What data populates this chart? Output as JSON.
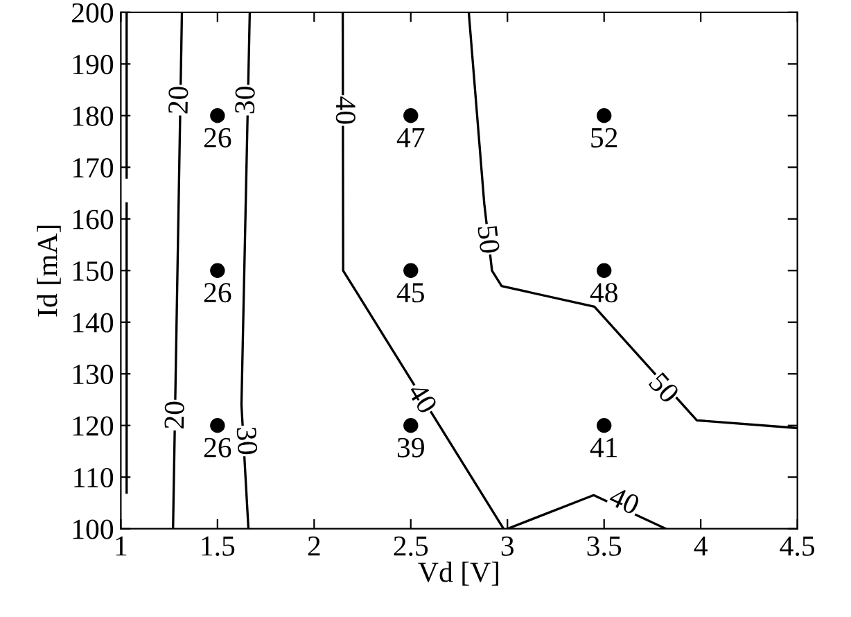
{
  "chart_data": {
    "type": "line",
    "xlabel": "Vd [V]",
    "ylabel": "Id [mA]",
    "xlim": [
      1,
      4.5
    ],
    "ylim": [
      100,
      200
    ],
    "xticks": [
      1,
      1.5,
      2,
      2.5,
      3,
      3.5,
      4,
      4.5
    ],
    "yticks": [
      100,
      110,
      120,
      130,
      140,
      150,
      160,
      170,
      180,
      190,
      200
    ],
    "grid": false,
    "legend": false,
    "series": [
      {
        "color": "#000000",
        "x": [
          1.03,
          1.03
        ],
        "values": [
          200,
          168
        ]
      },
      {
        "color": "#000000",
        "x": [
          1.03,
          1.03
        ],
        "values": [
          163,
          107
        ]
      },
      {
        "color": "#000000",
        "x": [
          1.316,
          1.27
        ],
        "values": [
          200,
          100
        ]
      },
      {
        "color": "#000000",
        "x": [
          1.667,
          1.624,
          1.66
        ],
        "values": [
          200,
          124,
          100
        ]
      },
      {
        "color": "#000000",
        "x": [
          2.148,
          2.15,
          2.98
        ],
        "values": [
          200,
          150,
          100
        ]
      },
      {
        "color": "#000000",
        "x": [
          3.0,
          3.446,
          3.82
        ],
        "values": [
          100,
          106.5,
          100
        ]
      },
      {
        "color": "#000000",
        "x": [
          2.8,
          2.88,
          2.92,
          2.97,
          3.45,
          3.98,
          4.5
        ],
        "values": [
          200,
          163,
          150,
          147,
          143,
          121,
          119.5
        ]
      },
      {
        "type": "scatter",
        "color": "#000000",
        "marker": "circle",
        "x": [
          1.5,
          1.5,
          1.5,
          2.5,
          2.5,
          2.5,
          3.5,
          3.5,
          3.5
        ],
        "values": [
          180,
          150,
          120,
          180,
          150,
          120,
          180,
          150,
          120
        ]
      }
    ],
    "annotations": [
      {
        "text": "26",
        "x": 1.5,
        "y": 180
      },
      {
        "text": "26",
        "x": 1.5,
        "y": 150
      },
      {
        "text": "26",
        "x": 1.5,
        "y": 120
      },
      {
        "text": "47",
        "x": 2.5,
        "y": 180
      },
      {
        "text": "45",
        "x": 2.5,
        "y": 150
      },
      {
        "text": "39",
        "x": 2.5,
        "y": 120
      },
      {
        "text": "52",
        "x": 3.5,
        "y": 180
      },
      {
        "text": "48",
        "x": 3.5,
        "y": 150
      },
      {
        "text": "41",
        "x": 3.5,
        "y": 120
      },
      {
        "text": "20",
        "x": 1.31,
        "y": 183
      },
      {
        "text": "20",
        "x": 1.29,
        "y": 122
      },
      {
        "text": "30",
        "x": 1.655,
        "y": 183
      },
      {
        "text": "30",
        "x": 1.64,
        "y": 117
      },
      {
        "text": "40",
        "x": 2.15,
        "y": 181
      },
      {
        "text": "40",
        "x": 2.55,
        "y": 125
      },
      {
        "text": "40",
        "x": 3.6,
        "y": 105
      },
      {
        "text": "50",
        "x": 2.89,
        "y": 156
      },
      {
        "text": "50",
        "x": 3.8,
        "y": 127
      }
    ]
  }
}
